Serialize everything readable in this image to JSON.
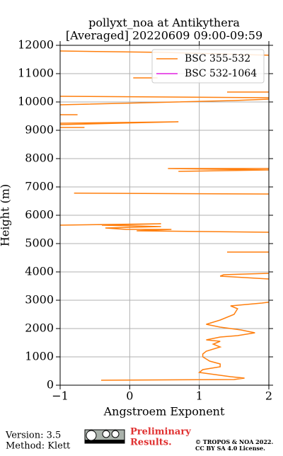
{
  "chart_data": {
    "type": "profile",
    "title": [
      "pollyxt_noa at Antikythera",
      "[Averaged] 20220609 09:00-09:59"
    ],
    "xlabel": "Angstroem Exponent",
    "ylabel": "Height (m)",
    "xlim": [
      -1,
      2
    ],
    "xticks": [
      {
        "value": -1,
        "label": "−1"
      },
      0,
      1,
      2
    ],
    "ylim": [
      0,
      12000
    ],
    "yticks": [
      0,
      1000,
      2000,
      3000,
      4000,
      5000,
      6000,
      7000,
      8000,
      9000,
      10000,
      11000,
      12000
    ],
    "grid": true,
    "legend": "upper right",
    "y": [
      175,
      200,
      250,
      300,
      350,
      450,
      550,
      650,
      750,
      850,
      1000,
      1100,
      1200,
      1350,
      1450,
      1550,
      1600,
      1700,
      1750,
      1850,
      1950,
      2050,
      2150,
      2300,
      2500,
      2700,
      2800,
      2900,
      2930,
      3000,
      3750,
      3850,
      3900,
      3950,
      4200,
      4700,
      4700,
      5000,
      5400,
      5450,
      5500,
      5500,
      5550,
      5600,
      5650,
      5700,
      5650,
      6000,
      6780,
      6750,
      7000,
      7550,
      7600,
      7650,
      7650,
      8000,
      9100,
      9100,
      9150,
      9250,
      9300,
      9200,
      9400,
      9550,
      9550,
      9700,
      9900,
      10050,
      10100,
      10120,
      10200,
      10150,
      10250,
      10350,
      10350,
      10500,
      10850,
      10850,
      11000,
      11650,
      11750,
      11800
    ],
    "series": [
      {
        "name": "BSC 355-532",
        "color": "#ff7f0e",
        "values": [
          -0.41,
          1.5,
          1.65,
          1.45,
          1.3,
          1.0,
          1.05,
          1.3,
          1.3,
          1.15,
          1.05,
          1.05,
          1.1,
          1.3,
          1.2,
          1.3,
          1.1,
          1.3,
          1.55,
          1.8,
          1.6,
          1.3,
          1.1,
          1.3,
          1.5,
          1.55,
          1.45,
          1.9,
          2.0,
          null,
          2.0,
          1.3,
          1.35,
          2.0,
          null,
          1.4,
          2.0,
          null,
          2.0,
          0.1,
          0.6,
          -0.05,
          -0.35,
          0.45,
          -0.4,
          0.45,
          -1.0,
          null,
          -0.8,
          2.0,
          null,
          0.7,
          2.0,
          0.55,
          2.0,
          null,
          -1.0,
          -0.65,
          null,
          -1.0,
          0.7,
          -1.0,
          null,
          -1.0,
          -0.75,
          null,
          -1.0,
          1.5,
          2.0,
          null,
          -1.0,
          2.0,
          null,
          1.4,
          2.0,
          null,
          0.05,
          0.4,
          null,
          2.0,
          0.5,
          -1.0
        ]
      },
      {
        "name": "BSC 532-1064",
        "color": "#e020e0",
        "values": [
          null,
          null,
          null,
          null,
          null,
          null,
          null,
          null,
          null,
          null,
          null,
          null,
          null,
          null,
          null,
          null,
          null,
          null,
          null,
          null,
          null,
          null,
          null,
          null,
          null,
          null,
          null,
          null,
          null,
          null,
          null,
          null,
          null,
          null,
          null,
          null,
          null,
          null,
          null,
          null,
          null,
          null,
          null,
          null,
          null,
          null,
          null,
          null,
          null,
          null,
          null,
          null,
          null,
          null,
          null,
          null,
          null,
          null,
          null,
          null,
          null,
          null,
          null,
          null,
          null,
          null,
          null,
          null,
          null,
          null,
          null,
          null,
          null,
          null,
          null,
          null,
          null,
          null,
          null,
          null,
          null,
          null
        ]
      }
    ]
  },
  "footer": {
    "version": "Version: 3.5",
    "method": "Method: Klett",
    "preliminary": "Preliminary",
    "results": "Results.",
    "copyright": "© TROPOS & NOA 2022.",
    "license": "CC BY SA 4.0 License."
  }
}
